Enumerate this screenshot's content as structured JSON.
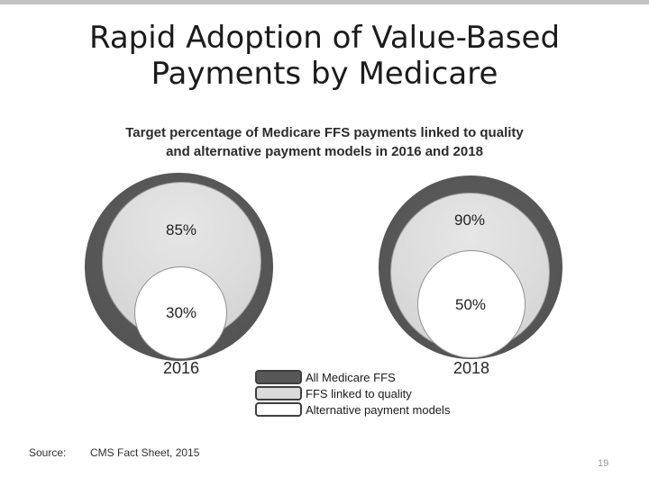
{
  "slide": {
    "title_line1": "Rapid Adoption of Value-Based",
    "title_line2": "Payments by Medicare",
    "source_label": "Source:",
    "source_value": "CMS Fact Sheet, 2015",
    "page_number": "19"
  },
  "chart": {
    "title_line1": "Target percentage of Medicare FFS payments linked to quality",
    "title_line2": "and alternative payment models in 2016 and 2018",
    "groups": [
      {
        "year": "2016",
        "quality_pct": "85%",
        "apm_pct": "30%"
      },
      {
        "year": "2018",
        "quality_pct": "90%",
        "apm_pct": "50%"
      }
    ],
    "legend": [
      {
        "label": "All Medicare FFS",
        "color": "#575757"
      },
      {
        "label": "FFS linked to quality",
        "color": "#dadada"
      },
      {
        "label": "Alternative payment models",
        "color": "#ffffff"
      }
    ]
  },
  "chart_data": {
    "type": "nested-circles",
    "title": "Target percentage of Medicare FFS payments linked to quality and alternative payment models in 2016 and 2018",
    "categories": [
      "2016",
      "2018"
    ],
    "series": [
      {
        "name": "All Medicare FFS",
        "values": [
          100,
          100
        ]
      },
      {
        "name": "FFS linked to quality",
        "values": [
          85,
          90
        ]
      },
      {
        "name": "Alternative payment models",
        "values": [
          30,
          50
        ]
      }
    ],
    "units": "percent of Medicare FFS payments",
    "legend_position": "bottom-center",
    "colors": {
      "all_medicare_ffs": "#575757",
      "ffs_linked_to_quality": "#dadada",
      "alternative_payment_models": "#ffffff"
    }
  }
}
